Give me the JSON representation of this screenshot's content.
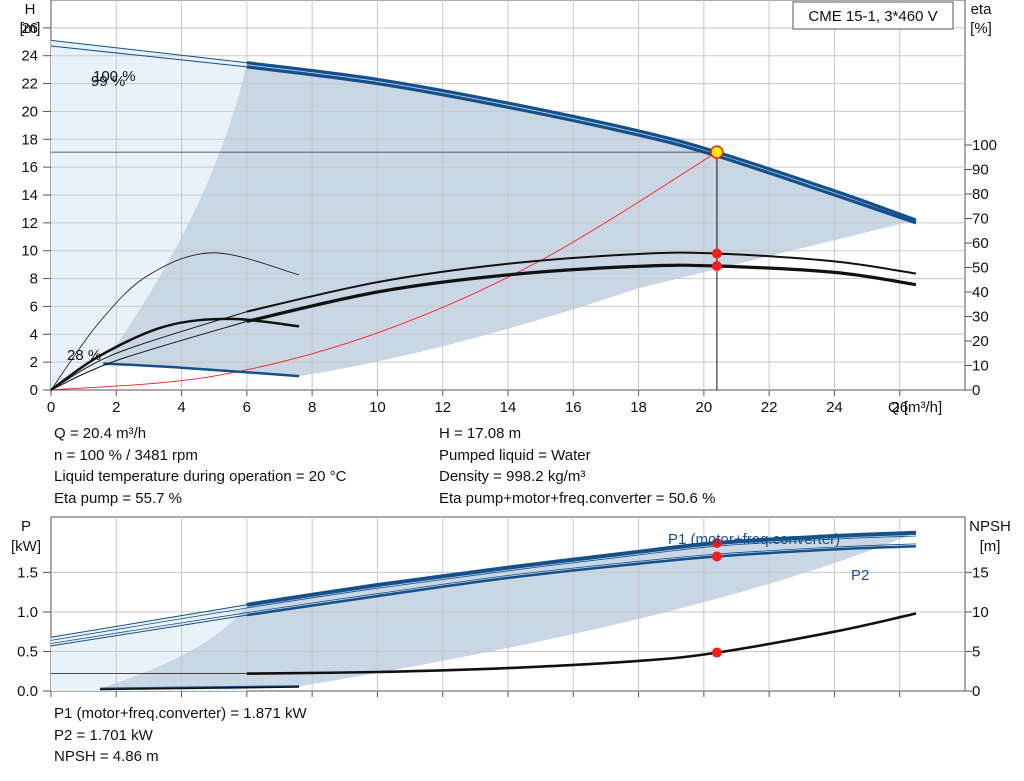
{
  "title": "CME 15-1, 3*460 V",
  "chart_data": [
    {
      "type": "line",
      "title": "CME 15-1, 3*460 V",
      "xlabel": "Q [m³/h]",
      "ylabel": "H",
      "ylabel_unit": "[m]",
      "y2label": "eta",
      "y2label_unit": "[%]",
      "xlim": [
        0,
        28
      ],
      "ylim": [
        0,
        28
      ],
      "y2lim": [
        0,
        100
      ],
      "x_ticks": [
        0,
        2,
        4,
        6,
        8,
        10,
        12,
        14,
        16,
        18,
        20,
        22,
        24,
        26
      ],
      "y_ticks": [
        0,
        2,
        4,
        6,
        8,
        10,
        12,
        14,
        16,
        18,
        20,
        22,
        24,
        26
      ],
      "y2_ticks": [
        0,
        10,
        20,
        30,
        40,
        50,
        60,
        70,
        80,
        90,
        100
      ],
      "grid": true,
      "speed_labels": [
        "100 %",
        "99 %",
        "28 %"
      ],
      "series": [
        {
          "name": "H 100 %",
          "x": [
            0,
            6,
            10,
            14,
            18,
            20.4,
            24,
            26.5
          ],
          "y": [
            25.1,
            23.5,
            22.3,
            20.6,
            18.6,
            17.08,
            14.3,
            12.2
          ]
        },
        {
          "name": "H 99 %",
          "x": [
            0,
            6,
            10,
            14,
            18,
            20.4,
            24,
            26.5
          ],
          "y": [
            24.7,
            23.2,
            22.0,
            20.3,
            18.3,
            16.8,
            14.0,
            12.0
          ]
        },
        {
          "name": "H 28 %",
          "x": [
            1.6,
            4,
            7.6
          ],
          "y": [
            1.9,
            1.6,
            1.0
          ]
        },
        {
          "name": "Eta pump+motor+freq.converter",
          "x": [
            0,
            2,
            6,
            10,
            14,
            18,
            20.4,
            24,
            26.5
          ],
          "y": [
            0,
            12,
            28,
            40,
            47,
            50.5,
            50.6,
            48,
            43
          ]
        },
        {
          "name": "Eta pump",
          "x": [
            0,
            2,
            6,
            10,
            14,
            18,
            20.4,
            24,
            26.5
          ],
          "y": [
            0,
            15,
            32,
            44,
            51.5,
            55.5,
            55.7,
            52.5,
            47.5
          ]
        },
        {
          "name": "Eta pump 28 % speed",
          "x": [
            0,
            1.5,
            3.5,
            5.5,
            7.6
          ],
          "y": [
            0,
            14,
            26,
            29,
            26
          ]
        },
        {
          "name": "Eta pump 28 % speed (thin)",
          "x": [
            0,
            1.5,
            3,
            5,
            7.6
          ],
          "y": [
            0,
            28,
            47,
            56,
            47
          ]
        },
        {
          "name": "System curve",
          "x": [
            0,
            5,
            10,
            15,
            20.4
          ],
          "y": [
            0,
            1.0,
            4.1,
            9.3,
            17.08
          ]
        }
      ],
      "duty_point": {
        "Q": 20.4,
        "H": 17.08,
        "eta_pump": 55.7,
        "eta_total": 50.6
      }
    },
    {
      "type": "line",
      "ylabel": "P",
      "ylabel_unit": "[kW]",
      "y2label": "NPSH",
      "y2label_unit": "[m]",
      "xlim": [
        0,
        28
      ],
      "ylim": [
        0,
        2.2
      ],
      "y2lim": [
        0,
        22
      ],
      "y_ticks": [
        0.0,
        0.5,
        1.0,
        1.5
      ],
      "y_tick_labels": [
        "0.0",
        "0.5",
        "1.0",
        "1.5"
      ],
      "y2_ticks": [
        0,
        5,
        10,
        15
      ],
      "grid": true,
      "series": [
        {
          "name": "P1 (motor+freq.converter)",
          "x": [
            0,
            6,
            10,
            14,
            18,
            20.4,
            24,
            26.5
          ],
          "y": [
            0.68,
            1.09,
            1.34,
            1.56,
            1.76,
            1.871,
            1.96,
            2.0
          ]
        },
        {
          "name": "P2",
          "x": [
            0,
            6,
            10,
            14,
            18,
            20.4,
            24,
            26.5
          ],
          "y": [
            0.57,
            0.96,
            1.2,
            1.43,
            1.61,
            1.701,
            1.79,
            1.83
          ]
        },
        {
          "name": "P1 28 % speed",
          "x": [
            1.5,
            7.6
          ],
          "y": [
            0.03,
            0.06
          ]
        },
        {
          "name": "P2 28 % speed",
          "x": [
            1.5,
            7.6
          ],
          "y": [
            0.02,
            0.05
          ]
        },
        {
          "name": "NPSH",
          "x": [
            6,
            10,
            14,
            18,
            20.4,
            24,
            26.5
          ],
          "y": [
            2.2,
            2.4,
            2.9,
            3.8,
            4.86,
            7.5,
            9.8
          ]
        }
      ],
      "legend_labels": [
        "P1 (motor+freq.converter)",
        "P2"
      ],
      "duty_point": {
        "Q": 20.4,
        "P1": 1.871,
        "P2": 1.701,
        "NPSH": 4.86
      }
    }
  ],
  "results_left": [
    "Q = 20.4 m³/h",
    "n = 100 % / 3481 rpm",
    "Liquid temperature during operation = 20 °C",
    "Eta pump = 55.7 %"
  ],
  "results_right": [
    "H = 17.08 m",
    "Pumped liquid = Water",
    "Density = 998.2 kg/m³",
    "Eta pump+motor+freq.converter = 50.6 %"
  ],
  "results_bottom": [
    "P1 (motor+freq.converter) = 1.871 kW",
    "P2 = 1.701 kW",
    "NPSH = 4.86 m"
  ],
  "colors": {
    "blue": "#14508c",
    "area": "#c9d6e3",
    "area_light": "#e9f2fb",
    "red": "#ff1a1a",
    "grid": "#c8c8c8"
  }
}
